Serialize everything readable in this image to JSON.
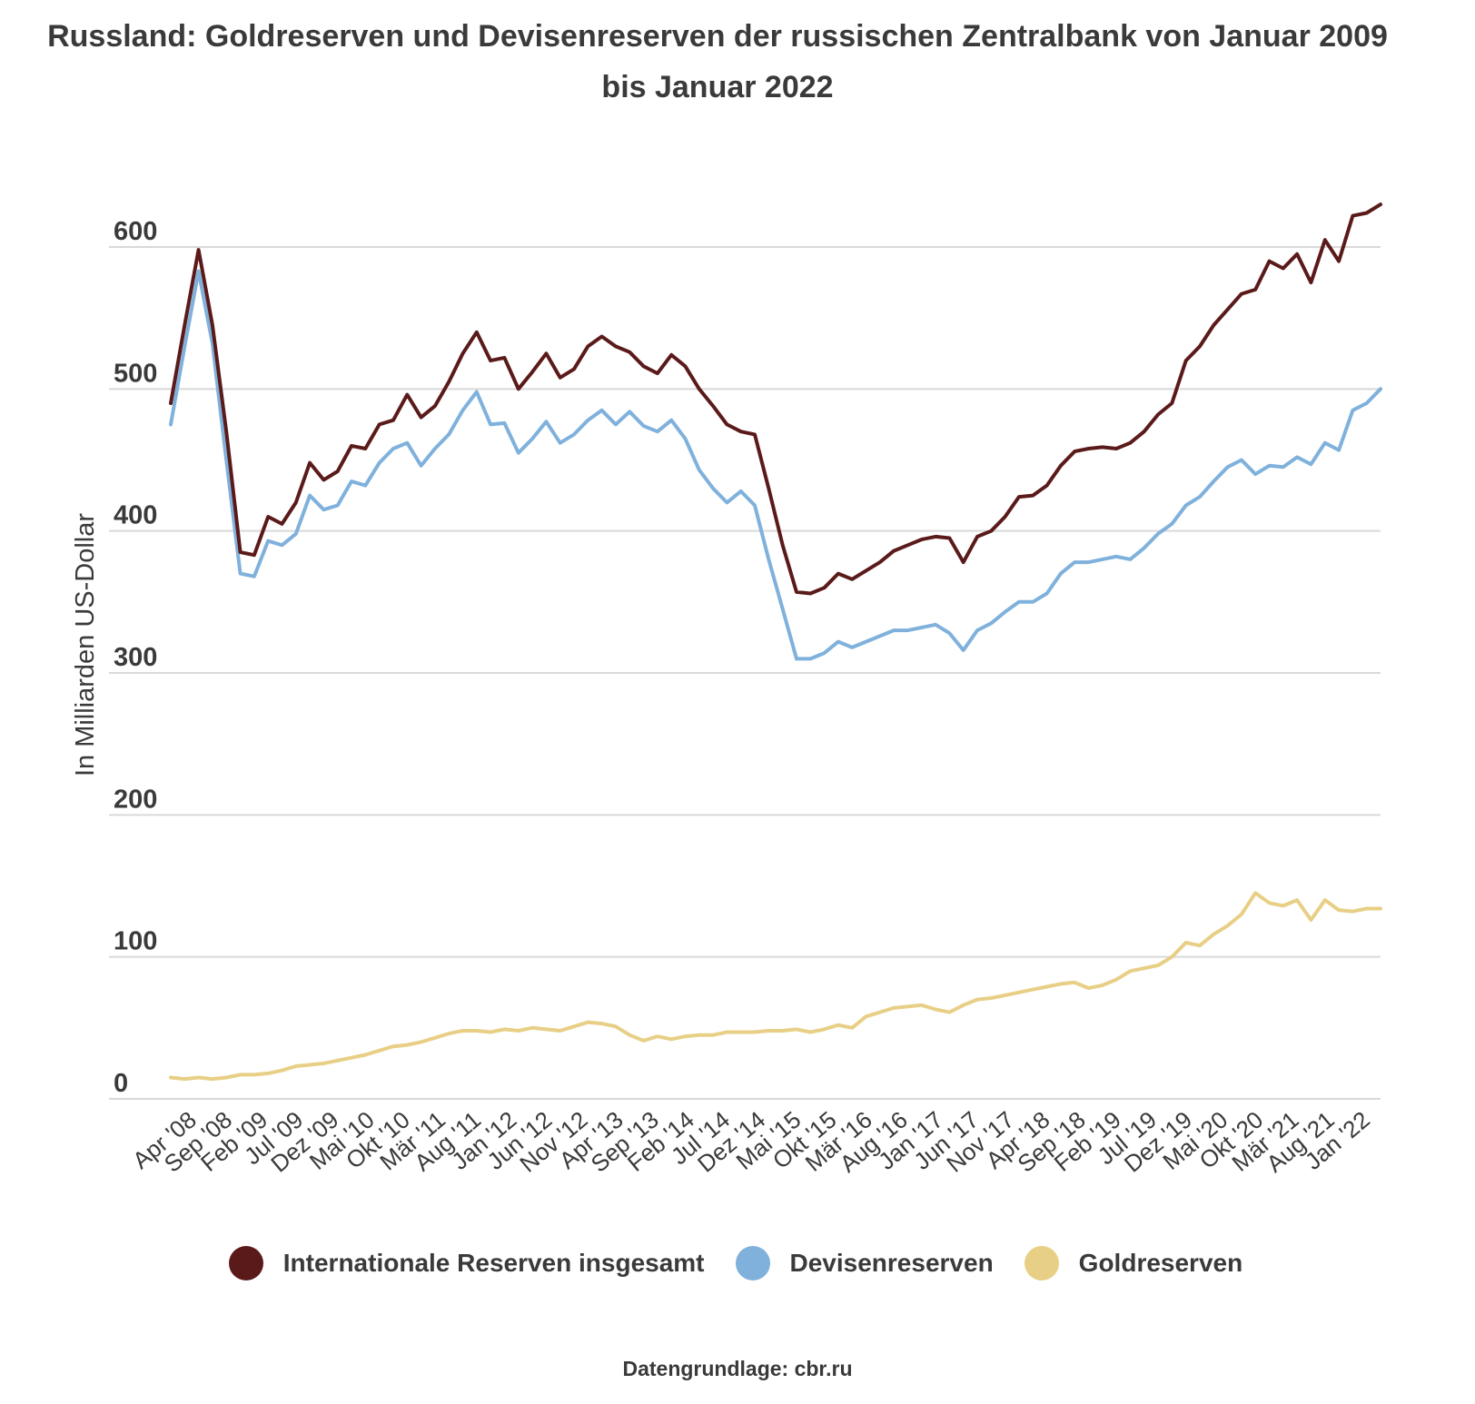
{
  "chart_data": {
    "type": "line",
    "title": "Russland: Goldreserven und Devisenreserven der russischen Zentralbank von Januar 2009 bis Januar 2022",
    "ylabel": "In Milliarden US-Dollar",
    "xlabel": "",
    "ylim": [
      0,
      620
    ],
    "yticks": [
      0,
      100,
      200,
      300,
      400,
      500,
      600
    ],
    "xtick_labels": [
      "Apr '08",
      "Sep '08",
      "Feb '09",
      "Jul '09",
      "Dez '09",
      "Mai '10",
      "Okt '10",
      "Mär '11",
      "Aug '11",
      "Jan '12",
      "Jun '12",
      "Nov '12",
      "Apr '13",
      "Sep '13",
      "Feb '14",
      "Jul '14",
      "Dez '14",
      "Mai '15",
      "Okt '15",
      "Mär '16",
      "Aug '16",
      "Jan '17",
      "Jun '17",
      "Nov '17",
      "Apr '18",
      "Sep '18",
      "Feb '19",
      "Jul '19",
      "Dez '19",
      "Mai '20",
      "Okt '20",
      "Mär '21",
      "Aug '21",
      "Jan '22"
    ],
    "grid": true,
    "legend_position": "bottom",
    "series": [
      {
        "name": "Internationale Reserven insgesamt",
        "color": "#5b1a1a",
        "values": [
          490,
          545,
          598,
          545,
          470,
          385,
          383,
          410,
          405,
          420,
          448,
          436,
          442,
          460,
          458,
          475,
          478,
          496,
          480,
          488,
          505,
          525,
          540,
          520,
          522,
          500,
          512,
          525,
          508,
          514,
          530,
          537,
          530,
          526,
          516,
          511,
          524,
          516,
          500,
          488,
          475,
          470,
          468,
          430,
          390,
          357,
          356,
          360,
          370,
          366,
          372,
          378,
          386,
          390,
          394,
          396,
          395,
          378,
          396,
          400,
          410,
          424,
          425,
          432,
          446,
          456,
          458,
          459,
          458,
          462,
          470,
          482,
          490,
          520,
          530,
          545,
          556,
          567,
          570,
          590,
          585,
          595,
          575,
          605,
          590,
          622,
          624,
          630
        ]
      },
      {
        "name": "Devisenreserven",
        "color": "#7fb1dc",
        "values": [
          475,
          530,
          583,
          532,
          450,
          370,
          368,
          393,
          390,
          398,
          425,
          415,
          418,
          435,
          432,
          448,
          458,
          462,
          446,
          458,
          468,
          485,
          498,
          475,
          476,
          455,
          465,
          477,
          462,
          468,
          478,
          485,
          475,
          484,
          474,
          470,
          478,
          465,
          443,
          430,
          420,
          428,
          418,
          380,
          345,
          310,
          310,
          314,
          322,
          318,
          322,
          326,
          330,
          330,
          332,
          334,
          328,
          316,
          330,
          335,
          343,
          350,
          350,
          356,
          370,
          378,
          378,
          380,
          382,
          380,
          388,
          398,
          405,
          418,
          424,
          435,
          445,
          450,
          440,
          446,
          445,
          452,
          447,
          462,
          457,
          485,
          490,
          500
        ]
      },
      {
        "name": "Goldreserven",
        "color": "#e8cf86",
        "values": [
          15,
          14,
          15,
          14,
          15,
          17,
          17,
          18,
          20,
          23,
          24,
          25,
          27,
          29,
          31,
          34,
          37,
          38,
          40,
          43,
          46,
          48,
          48,
          47,
          49,
          48,
          50,
          49,
          48,
          51,
          54,
          53,
          51,
          45,
          41,
          44,
          42,
          44,
          45,
          45,
          47,
          47,
          47,
          48,
          48,
          49,
          47,
          49,
          52,
          50,
          58,
          61,
          64,
          65,
          66,
          63,
          61,
          66,
          70,
          71,
          73,
          75,
          77,
          79,
          81,
          82,
          78,
          80,
          84,
          90,
          92,
          94,
          100,
          110,
          108,
          116,
          122,
          130,
          145,
          138,
          136,
          140,
          126,
          140,
          133,
          132,
          134,
          134
        ]
      }
    ]
  },
  "legend": {
    "items": [
      {
        "label": "Internationale Reserven insgesamt",
        "color": "#5b1a1a"
      },
      {
        "label": "Devisenreserven",
        "color": "#7fb1dc"
      },
      {
        "label": "Goldreserven",
        "color": "#e8cf86"
      }
    ]
  },
  "source_text": "Datengrundlage: cbr.ru"
}
